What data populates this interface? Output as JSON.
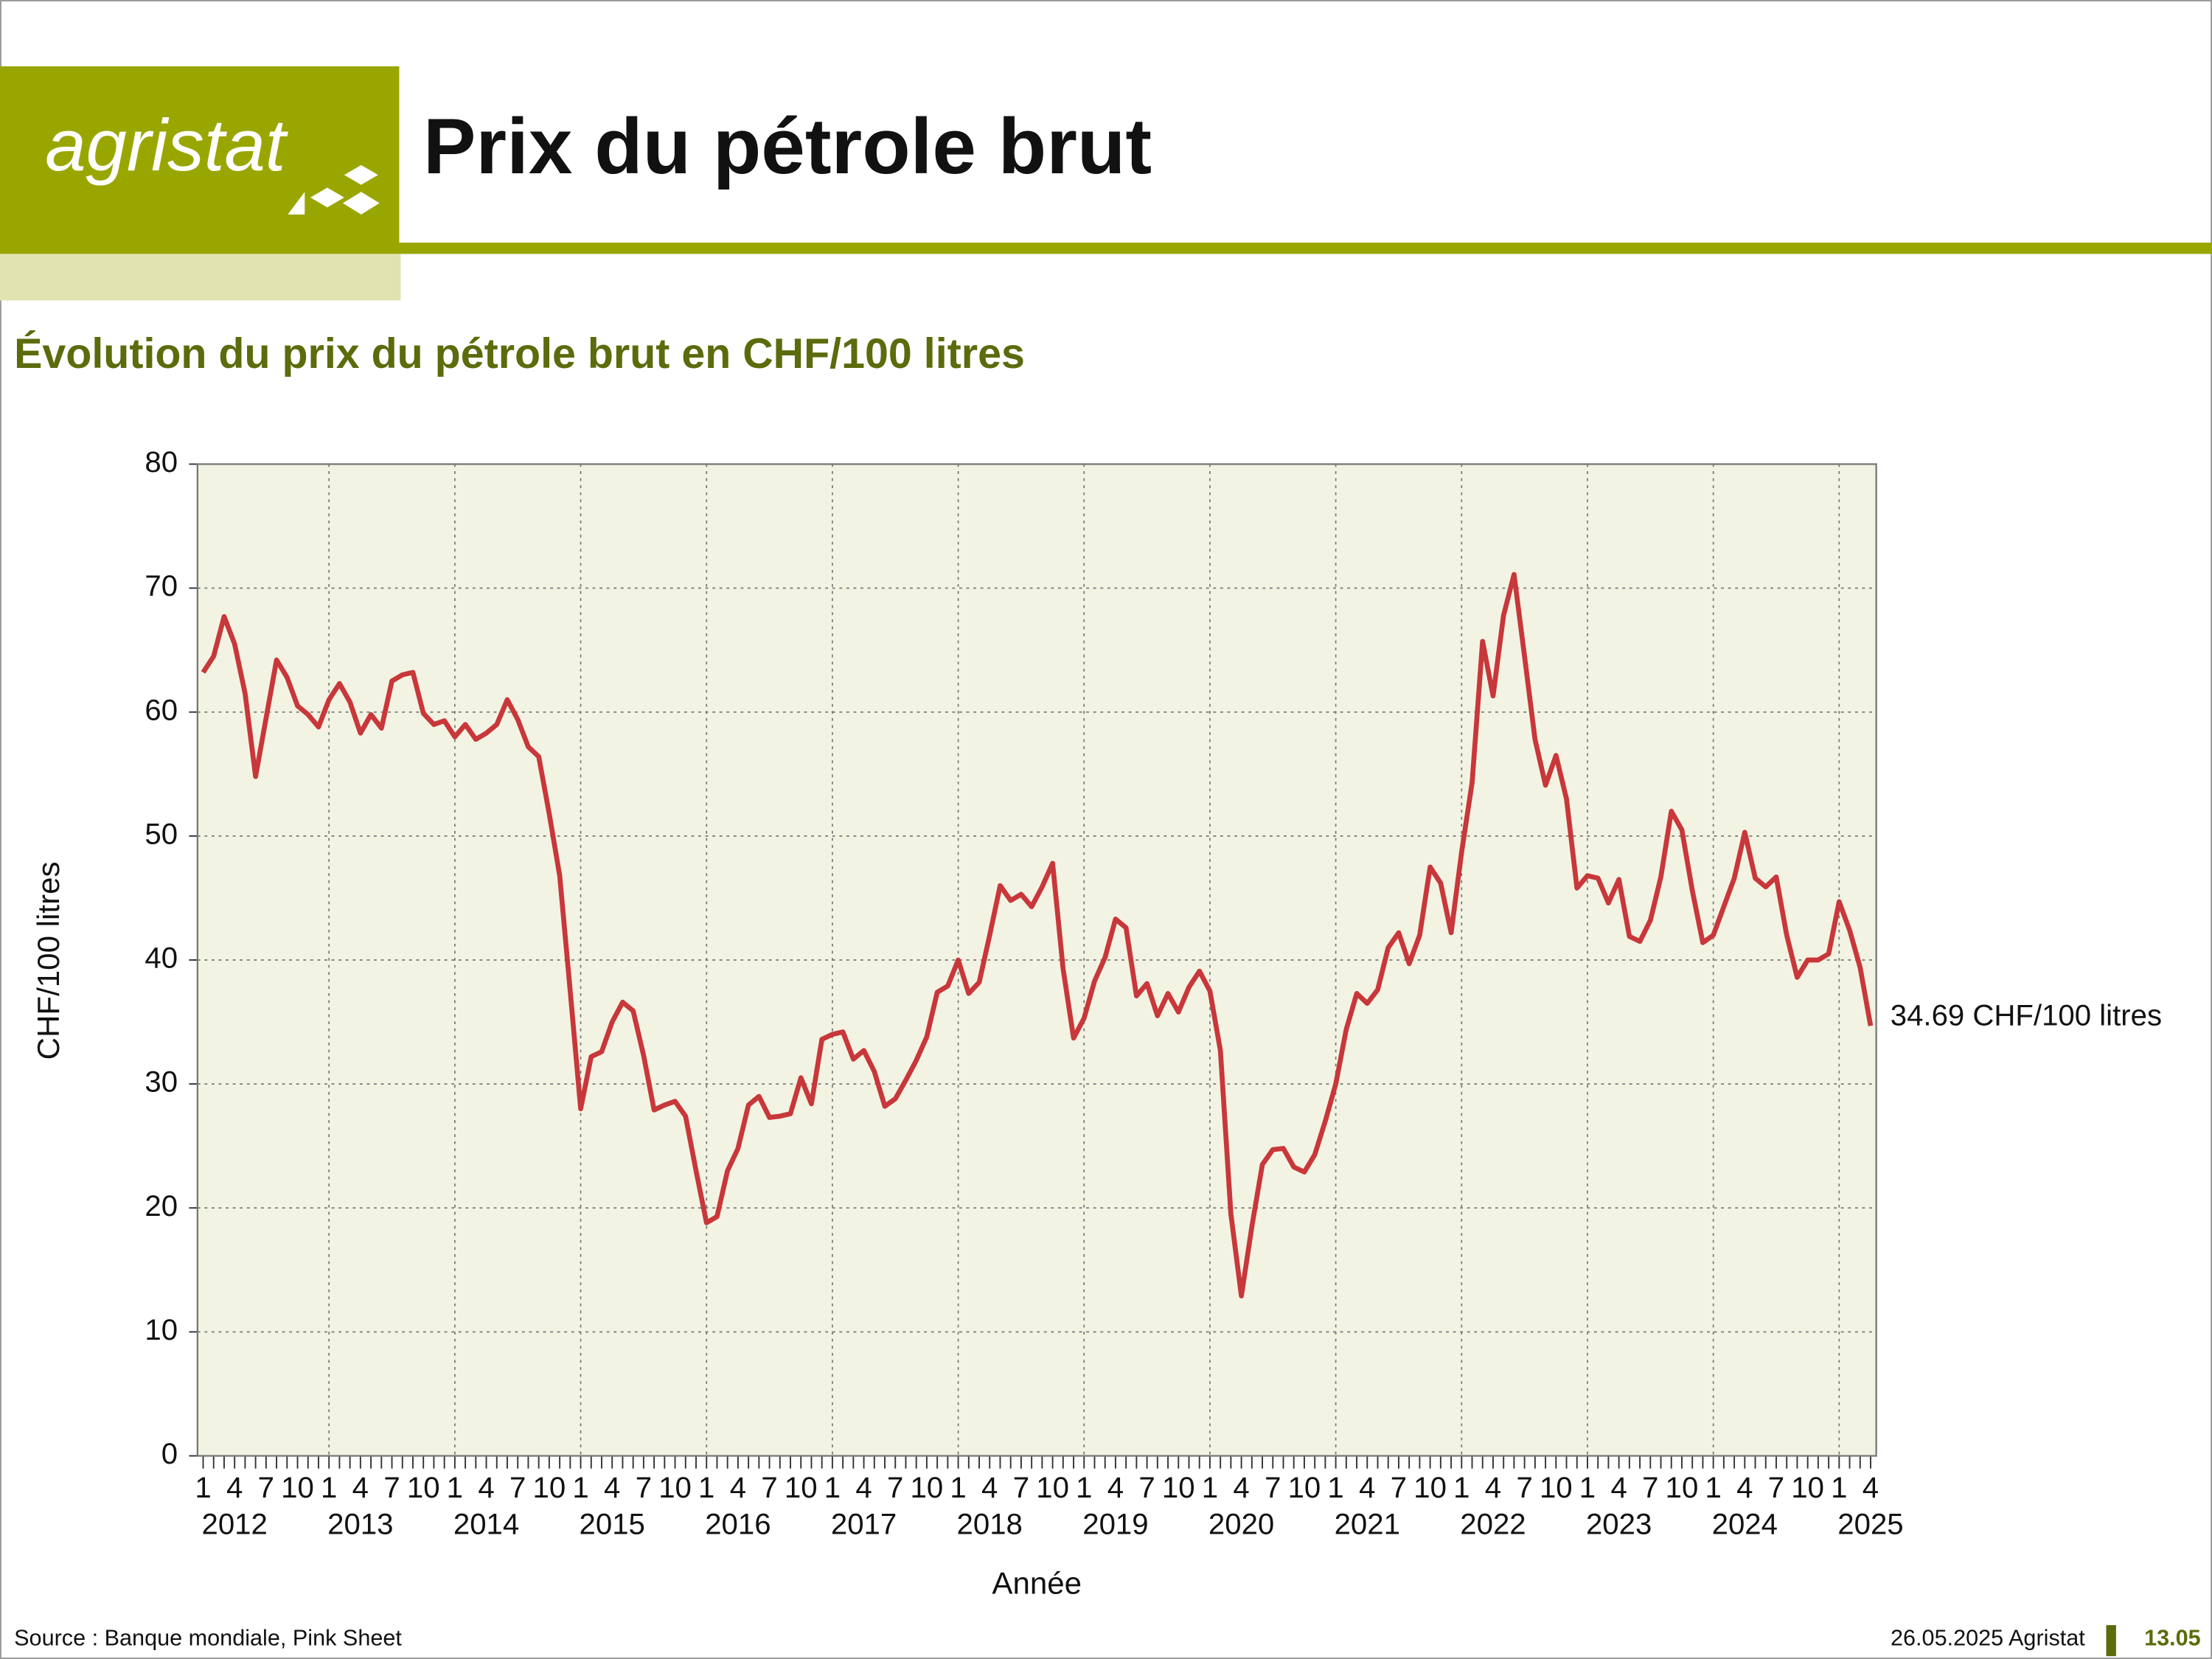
{
  "header": {
    "logo": "agristat",
    "title": "Prix du pétrole brut"
  },
  "footer": {
    "source": "Source : Banque mondiale, Pink Sheet",
    "date": "26.05.2025 Agristat",
    "page": "13.05"
  },
  "chart_data": {
    "type": "line",
    "title": "Évolution du prix du pétrole brut en CHF/100 litres",
    "y_label": "CHF/100 litres",
    "x_label": "Année",
    "annotation": "34.69 CHF/100 litres",
    "color": "#c8373a",
    "background": "#f3f3e3",
    "grid": true,
    "ylim": [
      0,
      80
    ],
    "yticks": [
      0,
      10,
      20,
      30,
      40,
      50,
      60,
      70,
      80
    ],
    "years": [
      "2012",
      "2013",
      "2014",
      "2015",
      "2016",
      "2017",
      "2018",
      "2019",
      "2020",
      "2021",
      "2022",
      "2023",
      "2024",
      "2025"
    ],
    "categories": [
      "1",
      null,
      null,
      "4",
      null,
      null,
      "7",
      null,
      null,
      "10",
      null,
      null,
      "1",
      null,
      null,
      "4",
      null,
      null,
      "7",
      null,
      null,
      "10",
      null,
      null,
      "1",
      null,
      null,
      "4",
      null,
      null,
      "7",
      null,
      null,
      "10",
      null,
      null,
      "1",
      null,
      null,
      "4",
      null,
      null,
      "7",
      null,
      null,
      "10",
      null,
      null,
      "1",
      null,
      null,
      "4",
      null,
      null,
      "7",
      null,
      null,
      "10",
      null,
      null,
      "1",
      null,
      null,
      "4",
      null,
      null,
      "7",
      null,
      null,
      "10",
      null,
      null,
      "1",
      null,
      null,
      "4",
      null,
      null,
      "7",
      null,
      null,
      "10",
      null,
      null,
      "1",
      null,
      null,
      "4",
      null,
      null,
      "7",
      null,
      null,
      "10",
      null,
      null,
      "1",
      null,
      null,
      "4",
      null,
      null,
      "7",
      null,
      null,
      "10",
      null,
      null,
      "1",
      null,
      null,
      "4",
      null,
      null,
      "7",
      null,
      null,
      "10",
      null,
      null,
      "1",
      null,
      null,
      "4",
      null,
      null,
      "7",
      null,
      null,
      "10",
      null,
      null,
      "1",
      null,
      null,
      "4",
      null,
      null,
      "7",
      null,
      null,
      "10",
      null,
      null,
      "1",
      null,
      null,
      "4",
      null,
      null,
      "7",
      null,
      null,
      "10",
      null,
      null,
      "1",
      null,
      null,
      "4"
    ],
    "values": [
      63.2,
      64.5,
      67.7,
      65.5,
      61.5,
      54.8,
      59.5,
      64.2,
      62.8,
      60.5,
      59.8,
      58.8,
      61.0,
      62.3,
      60.8,
      58.3,
      59.8,
      58.7,
      62.5,
      63.0,
      63.2,
      59.9,
      59.0,
      59.3,
      58.0,
      59.0,
      57.8,
      58.3,
      59.0,
      61.0,
      59.4,
      57.2,
      56.4,
      51.8,
      46.8,
      37.5,
      28.0,
      32.2,
      32.6,
      35.0,
      36.6,
      35.9,
      32.3,
      27.9,
      28.3,
      28.6,
      27.4,
      23.0,
      18.8,
      19.3,
      23.0,
      24.8,
      28.3,
      29.0,
      27.3,
      27.4,
      27.6,
      30.5,
      28.4,
      33.6,
      34.0,
      34.2,
      32.0,
      32.7,
      31.0,
      28.2,
      28.8,
      30.3,
      31.9,
      33.8,
      37.4,
      37.9,
      40.0,
      37.3,
      38.2,
      42.0,
      46.0,
      44.8,
      45.3,
      44.3,
      45.9,
      47.8,
      39.3,
      33.7,
      35.3,
      38.3,
      40.2,
      43.3,
      42.6,
      37.1,
      38.1,
      35.5,
      37.3,
      35.8,
      37.8,
      39.1,
      37.5,
      32.7,
      19.5,
      12.9,
      18.5,
      23.5,
      24.7,
      24.8,
      23.3,
      22.9,
      24.3,
      27.0,
      30.0,
      34.4,
      37.3,
      36.5,
      37.6,
      41.0,
      42.2,
      39.7,
      42.0,
      47.5,
      46.2,
      42.2,
      48.7,
      54.3,
      65.7,
      61.3,
      67.8,
      71.1,
      64.5,
      57.8,
      54.1,
      56.5,
      53.0,
      45.8,
      46.8,
      46.6,
      44.6,
      46.5,
      41.9,
      41.5,
      43.2,
      46.7,
      52.0,
      50.5,
      45.6,
      41.4,
      42.0,
      44.3,
      46.6,
      50.3,
      46.6,
      45.9,
      46.7,
      42.0,
      38.6,
      40.0,
      40.0,
      40.5,
      44.7,
      42.4,
      39.4,
      34.69
    ]
  }
}
